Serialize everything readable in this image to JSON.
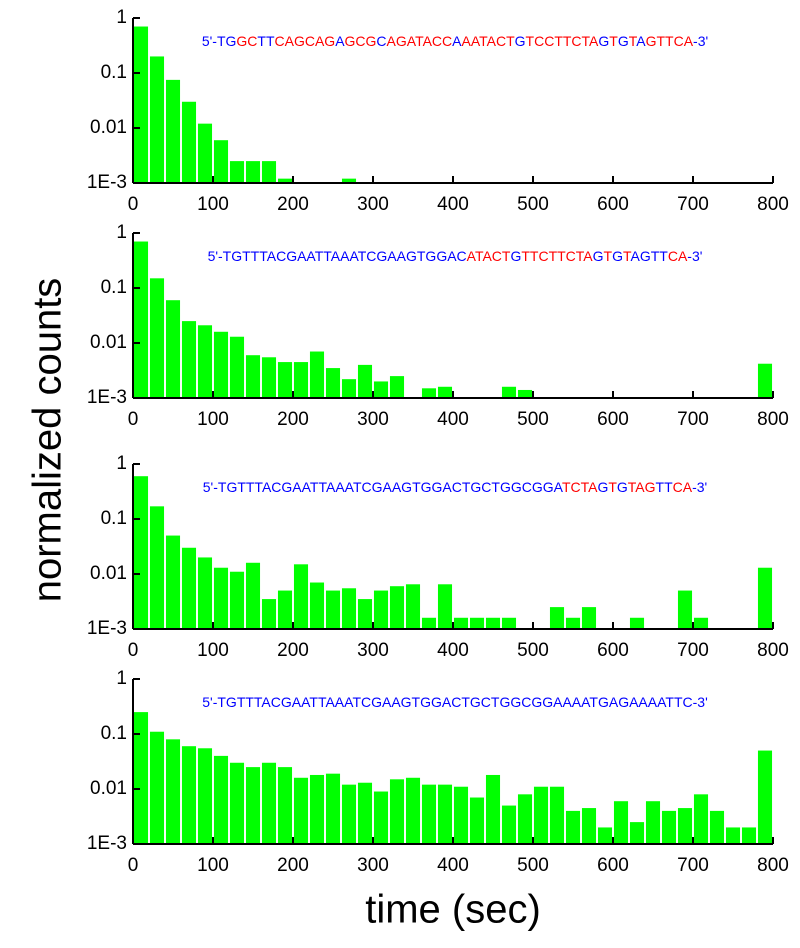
{
  "axis_labels": {
    "y": "normalized counts",
    "x": "time (sec)"
  },
  "chart_data": [
    {
      "type": "histogram",
      "color": "#00ff00",
      "log_y": true,
      "sequence": [
        {
          "text": "5'-TG",
          "color": "#0000ff"
        },
        {
          "text": "GC",
          "color": "#ff0000"
        },
        {
          "text": "TT",
          "color": "#0000ff"
        },
        {
          "text": "CAGCAG",
          "color": "#ff0000"
        },
        {
          "text": "A",
          "color": "#0000ff"
        },
        {
          "text": "GCG",
          "color": "#ff0000"
        },
        {
          "text": "C",
          "color": "#0000ff"
        },
        {
          "text": "AGATACC",
          "color": "#ff0000"
        },
        {
          "text": "A",
          "color": "#0000ff"
        },
        {
          "text": "AATACT",
          "color": "#ff0000"
        },
        {
          "text": "G",
          "color": "#0000ff"
        },
        {
          "text": "TCCTTCTA",
          "color": "#ff0000"
        },
        {
          "text": "G",
          "color": "#0000ff"
        },
        {
          "text": "T",
          "color": "#ff0000"
        },
        {
          "text": "G",
          "color": "#0000ff"
        },
        {
          "text": "T",
          "color": "#ff0000"
        },
        {
          "text": "A",
          "color": "#0000ff"
        },
        {
          "text": "GTTCA",
          "color": "#ff0000"
        },
        {
          "text": "-3'",
          "color": "#0000ff"
        }
      ],
      "bins": [
        0,
        20,
        40,
        60,
        80,
        100,
        120,
        140,
        160,
        180,
        200,
        220,
        240,
        260,
        280,
        300,
        320,
        340,
        360,
        380,
        400,
        420,
        440,
        460,
        480,
        500,
        520,
        540,
        560,
        580,
        600,
        620,
        640,
        660,
        680,
        700,
        720,
        740,
        760,
        780,
        800
      ],
      "values": [
        0.7,
        0.2,
        0.075,
        0.03,
        0.012,
        0.006,
        0.0025,
        0.0025,
        0.0025,
        0.0012,
        null,
        null,
        null,
        0.0012,
        null,
        null,
        null,
        null,
        null,
        null,
        null,
        null,
        null,
        null,
        null,
        null,
        null,
        null,
        null,
        null,
        null,
        null,
        null,
        null,
        null,
        null,
        null,
        null,
        null,
        null
      ],
      "xlim": [
        0,
        800
      ],
      "xticks": [
        0,
        100,
        200,
        300,
        400,
        500,
        600,
        700,
        800
      ],
      "ylim": [
        0.001,
        1
      ],
      "yticks": [
        {
          "value": 0.001,
          "label": "1E-3"
        },
        0.01,
        0.1,
        1
      ]
    },
    {
      "type": "histogram",
      "color": "#00ff00",
      "log_y": true,
      "sequence": [
        {
          "text": "5'-TGTTTACGAATTAAATCGAAGTGGAC",
          "color": "#0000ff"
        },
        {
          "text": "ATACT",
          "color": "#ff0000"
        },
        {
          "text": "G",
          "color": "#0000ff"
        },
        {
          "text": "TTCTTCTA",
          "color": "#ff0000"
        },
        {
          "text": "G",
          "color": "#0000ff"
        },
        {
          "text": "T",
          "color": "#ff0000"
        },
        {
          "text": "G",
          "color": "#0000ff"
        },
        {
          "text": "T",
          "color": "#ff0000"
        },
        {
          "text": "AGTT",
          "color": "#0000ff"
        },
        {
          "text": "CA",
          "color": "#ff0000"
        },
        {
          "text": "-3'",
          "color": "#0000ff"
        }
      ],
      "bins": [
        0,
        20,
        40,
        60,
        80,
        100,
        120,
        140,
        160,
        180,
        200,
        220,
        240,
        260,
        280,
        300,
        320,
        340,
        360,
        380,
        400,
        420,
        440,
        460,
        480,
        500,
        520,
        540,
        560,
        580,
        600,
        620,
        640,
        660,
        680,
        700,
        720,
        740,
        760,
        780,
        800
      ],
      "values": [
        0.7,
        0.15,
        0.06,
        0.025,
        0.021,
        0.016,
        0.013,
        0.006,
        0.0055,
        0.0045,
        0.0045,
        0.007,
        0.0035,
        0.0022,
        0.004,
        0.002,
        0.0025,
        null,
        0.0015,
        0.0016,
        null,
        null,
        null,
        0.0016,
        0.0014,
        null,
        null,
        null,
        null,
        null,
        null,
        null,
        null,
        null,
        null,
        null,
        null,
        null,
        null,
        0.0042
      ],
      "xlim": [
        0,
        800
      ],
      "xticks": [
        0,
        100,
        200,
        300,
        400,
        500,
        600,
        700,
        800
      ],
      "ylim": [
        0.001,
        1
      ],
      "yticks": [
        {
          "value": 0.001,
          "label": "1E-3"
        },
        0.01,
        0.1,
        1
      ]
    },
    {
      "type": "histogram",
      "color": "#00ff00",
      "log_y": true,
      "sequence": [
        {
          "text": "5'-TGTTTACGAATTAAATCGAAGTGGACTGCTGGCGGA",
          "color": "#0000ff"
        },
        {
          "text": "TCTA",
          "color": "#ff0000"
        },
        {
          "text": "G",
          "color": "#0000ff"
        },
        {
          "text": "T",
          "color": "#ff0000"
        },
        {
          "text": "G",
          "color": "#0000ff"
        },
        {
          "text": "TAG",
          "color": "#ff0000"
        },
        {
          "text": "TT",
          "color": "#0000ff"
        },
        {
          "text": "CA",
          "color": "#ff0000"
        },
        {
          "text": "-3'",
          "color": "#0000ff"
        }
      ],
      "bins": [
        0,
        20,
        40,
        60,
        80,
        100,
        120,
        140,
        160,
        180,
        200,
        220,
        240,
        260,
        280,
        300,
        320,
        340,
        360,
        380,
        400,
        420,
        440,
        460,
        480,
        500,
        520,
        540,
        560,
        580,
        600,
        620,
        640,
        660,
        680,
        700,
        720,
        740,
        760,
        780,
        800
      ],
      "values": [
        0.6,
        0.17,
        0.05,
        0.03,
        0.02,
        0.013,
        0.011,
        0.016,
        0.0035,
        0.005,
        0.015,
        0.007,
        0.005,
        0.0055,
        0.0035,
        0.005,
        0.006,
        0.0065,
        0.0016,
        0.0065,
        0.0016,
        0.0016,
        0.0016,
        0.0016,
        null,
        null,
        0.0025,
        0.0016,
        0.0025,
        null,
        null,
        0.0016,
        null,
        null,
        0.005,
        0.0016,
        null,
        null,
        null,
        0.013
      ],
      "xlim": [
        0,
        800
      ],
      "xticks": [
        0,
        100,
        200,
        300,
        400,
        500,
        600,
        700,
        800
      ],
      "ylim": [
        0.001,
        1
      ],
      "yticks": [
        {
          "value": 0.001,
          "label": "1E-3"
        },
        0.01,
        0.1,
        1
      ]
    },
    {
      "type": "histogram",
      "color": "#00ff00",
      "log_y": true,
      "sequence": [
        {
          "text": "5'-TGTTTACGAATTAAATCGAAGTGGACTGCTGGCGGAAAATGAGAAAATTC-3'",
          "color": "#0000ff"
        }
      ],
      "bins": [
        0,
        20,
        40,
        60,
        80,
        100,
        120,
        140,
        160,
        180,
        200,
        220,
        240,
        260,
        280,
        300,
        320,
        340,
        360,
        380,
        400,
        420,
        440,
        460,
        480,
        500,
        520,
        540,
        560,
        580,
        600,
        620,
        640,
        660,
        680,
        700,
        720,
        740,
        760,
        780,
        800
      ],
      "values": [
        0.25,
        0.11,
        0.08,
        0.06,
        0.055,
        0.04,
        0.03,
        0.025,
        0.03,
        0.025,
        0.016,
        0.018,
        0.019,
        0.012,
        0.013,
        0.009,
        0.015,
        0.016,
        0.012,
        0.012,
        0.011,
        0.007,
        0.018,
        0.005,
        0.008,
        0.011,
        0.011,
        0.004,
        0.0045,
        0.002,
        0.006,
        0.0025,
        0.006,
        0.004,
        0.0045,
        0.008,
        0.004,
        0.002,
        0.002,
        0.05
      ],
      "xlim": [
        0,
        800
      ],
      "xticks": [
        0,
        100,
        200,
        300,
        400,
        500,
        600,
        700,
        800
      ],
      "ylim": [
        0.001,
        1
      ],
      "yticks": [
        {
          "value": 0.001,
          "label": "1E-3"
        },
        0.01,
        0.1,
        1
      ]
    }
  ]
}
